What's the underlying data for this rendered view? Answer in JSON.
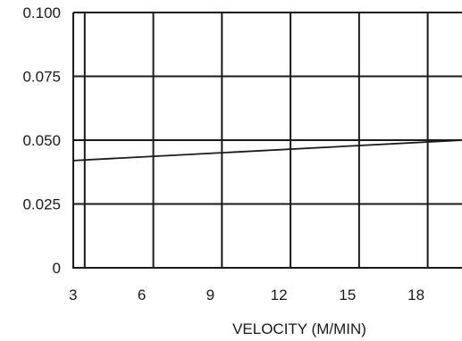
{
  "chart_data": {
    "type": "line",
    "title": "",
    "xlabel": "VELOCITY (M/MIN)",
    "ylabel": "",
    "x_ticks": [
      3,
      6,
      9,
      12,
      15,
      18
    ],
    "x_tick_labels": [
      "3",
      "6",
      "9",
      "12",
      "15",
      "18"
    ],
    "y_ticks": [
      0,
      0.025,
      0.05,
      0.075,
      0.1
    ],
    "y_tick_labels": [
      "0",
      "0.025",
      "0.050",
      "0.075",
      "0.100"
    ],
    "xlim": [
      2.5,
      19.5
    ],
    "ylim": [
      0,
      0.1
    ],
    "grid": true,
    "series": [
      {
        "x": [
          2.5,
          19.5
        ],
        "y": [
          0.042,
          0.05
        ]
      }
    ],
    "colors": {
      "line": "#1a1a1a",
      "grid": "#1a1a1a",
      "background": "#ffffff"
    }
  }
}
